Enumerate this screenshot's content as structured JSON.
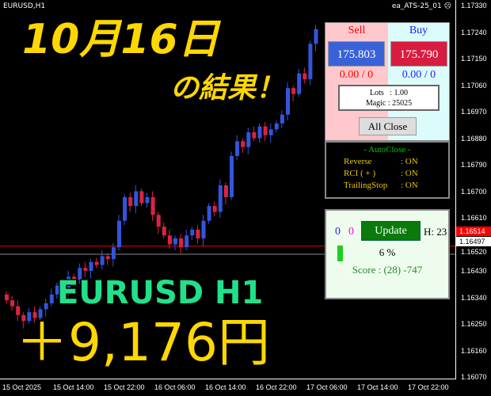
{
  "header": {
    "symbol": "EURUSD,H1",
    "ea_name": "ea_ATS-25_01 ☹"
  },
  "price_axis": [
    "1.17330",
    "1.17240",
    "1.17150",
    "1.17060",
    "1.16970",
    "1.16880",
    "1.16790",
    "1.16700",
    "1.16610",
    "1.16520",
    "1.16430",
    "1.16340",
    "1.16250",
    "1.16160",
    "1.16070"
  ],
  "current_bid": "1.16497",
  "line_price": "1.16514",
  "time_axis": [
    "15 Oct 2025",
    "15 Oct 14:00",
    "15 Oct 22:00",
    "16 Oct 06:00",
    "16 Oct 14:00",
    "16 Oct 22:00",
    "17 Oct 06:00",
    "17 Oct 14:00",
    "17 Oct 22:00"
  ],
  "candle_closes": [
    1.1633,
    1.1631,
    1.1628,
    1.1626,
    1.1629,
    1.1627,
    1.163,
    1.1632,
    1.1635,
    1.1638,
    1.1637,
    1.1641,
    1.164,
    1.1644,
    1.1643,
    1.1646,
    1.1645,
    1.1648,
    1.1647,
    1.1651,
    1.166,
    1.1668,
    1.1665,
    1.167,
    1.1666,
    1.1668,
    1.1662,
    1.1658,
    1.1655,
    1.1652,
    1.1654,
    1.1651,
    1.1655,
    1.1657,
    1.1654,
    1.166,
    1.1665,
    1.1663,
    1.1672,
    1.1668,
    1.1682,
    1.1687,
    1.1685,
    1.169,
    1.1688,
    1.1692,
    1.1689,
    1.1691,
    1.1693,
    1.1696,
    1.1705,
    1.1703,
    1.171,
    1.1708,
    1.172,
    1.1725
  ],
  "panel": {
    "sell_label": "Sell",
    "buy_label": "Buy",
    "sell_price": "175.803",
    "buy_price": "175.790",
    "sell_pos": "0.00 / 0",
    "buy_pos": "0.00 / 0",
    "lots": "Lots   : 1.00",
    "magic": "Magic : 25025",
    "all_close": "All Close"
  },
  "autoclose": {
    "title": "- AutoClose -",
    "rows": [
      {
        "k": "Reverse",
        "v": ": ON"
      },
      {
        "k": "RCI  ( + )",
        "v": ": ON"
      },
      {
        "k": "TrailingStop",
        "v": ": ON"
      }
    ]
  },
  "update_panel": {
    "count_blue": "0",
    "count_magenta": "0",
    "update_label": "Update",
    "hour": "H: 23",
    "progress_text": "6 %",
    "progress": 0.06,
    "score": "Score : (28) -747"
  },
  "overlay": {
    "date": "10月16日",
    "result": "の結果！",
    "pair": "EURUSD H1",
    "profit": "＋9,176円"
  },
  "colors": {
    "bull": "#3355dd",
    "bear": "#dd2244",
    "text_yellow": "#ffd800",
    "text_green": "#22e08a"
  }
}
